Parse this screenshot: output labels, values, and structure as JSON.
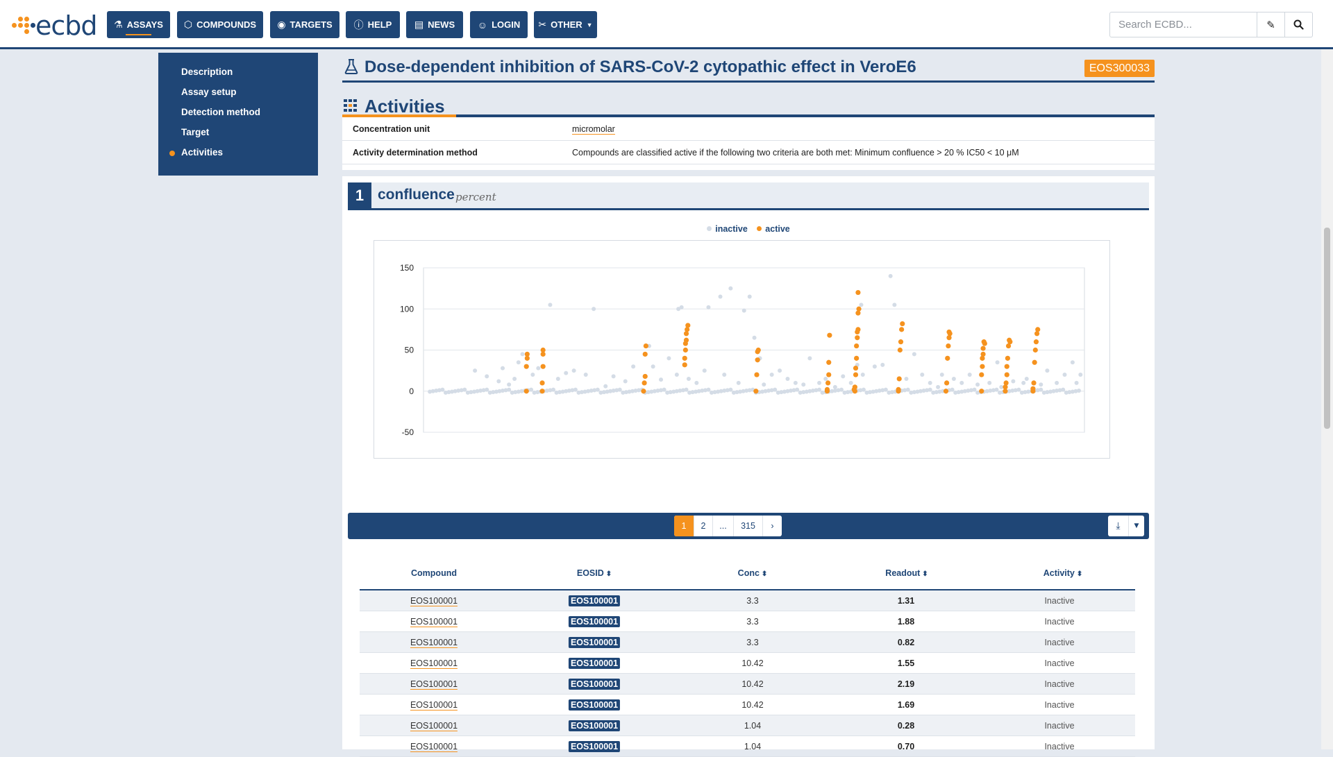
{
  "app": {
    "logo_text": "ecbd",
    "nav": [
      {
        "label": "ASSAYS",
        "icon": "flask-icon",
        "active": true
      },
      {
        "label": "COMPOUNDS",
        "icon": "hexagon-icon",
        "active": false
      },
      {
        "label": "TARGETS",
        "icon": "target-icon",
        "active": false
      },
      {
        "label": "HELP",
        "icon": "help-icon",
        "active": false
      },
      {
        "label": "NEWS",
        "icon": "news-icon",
        "active": false
      },
      {
        "label": "LOGIN",
        "icon": "user-icon",
        "active": false
      },
      {
        "label": "OTHER",
        "icon": "tools-icon",
        "active": false
      }
    ],
    "search": {
      "placeholder": "Search ECBD..."
    }
  },
  "sidebar": {
    "items": [
      {
        "label": "Description",
        "current": false
      },
      {
        "label": "Assay setup",
        "current": false
      },
      {
        "label": "Detection method",
        "current": false
      },
      {
        "label": "Target",
        "current": false
      },
      {
        "label": "Activities",
        "current": true
      }
    ]
  },
  "assay": {
    "title": "Dose-dependent inhibition of SARS-CoV-2 cytopathic effect in VeroE6",
    "id": "EOS300033"
  },
  "activities": {
    "title": "Activities",
    "info": [
      {
        "key": "Concentration unit",
        "value": "micromolar"
      },
      {
        "key": "Activity determination method",
        "value": "Compounds are classified active if the following two criteria are both met: Minimum confluence > 20 % IC50 < 10 μM"
      }
    ],
    "readout": {
      "number": "1",
      "name": "confluence",
      "unit": "percent"
    }
  },
  "chart_data": {
    "type": "scatter",
    "series": [
      {
        "name": "inactive",
        "color": "#d4dce6"
      },
      {
        "name": "active",
        "color": "#f5921e"
      }
    ],
    "yticks": [
      "150",
      "100",
      "50",
      "0",
      "-50"
    ],
    "ylim": [
      -50,
      150
    ],
    "grid": true,
    "legend_position": "top-center",
    "points_active": [
      [
        130,
        0
      ],
      [
        130,
        30
      ],
      [
        131,
        40
      ],
      [
        131,
        45
      ],
      [
        150,
        0
      ],
      [
        150,
        10
      ],
      [
        151,
        30
      ],
      [
        151,
        45
      ],
      [
        151,
        50
      ],
      [
        278,
        0
      ],
      [
        279,
        10
      ],
      [
        280,
        18
      ],
      [
        280,
        45
      ],
      [
        281,
        55
      ],
      [
        330,
        40
      ],
      [
        331,
        50
      ],
      [
        332,
        62
      ],
      [
        332,
        70
      ],
      [
        333,
        75
      ],
      [
        334,
        80
      ],
      [
        330,
        32
      ],
      [
        331,
        58
      ],
      [
        420,
        0
      ],
      [
        421,
        20
      ],
      [
        422,
        38
      ],
      [
        422,
        48
      ],
      [
        423,
        50
      ],
      [
        510,
        0
      ],
      [
        511,
        10
      ],
      [
        512,
        20
      ],
      [
        512,
        35
      ],
      [
        513,
        68
      ],
      [
        510,
        2
      ],
      [
        545,
        0
      ],
      [
        546,
        20
      ],
      [
        547,
        40
      ],
      [
        547,
        55
      ],
      [
        548,
        65
      ],
      [
        548,
        72
      ],
      [
        549,
        75
      ],
      [
        545,
        5
      ],
      [
        546,
        28
      ],
      [
        544,
        2
      ],
      [
        549,
        120
      ],
      [
        550,
        100
      ],
      [
        549,
        95
      ],
      [
        600,
        0
      ],
      [
        601,
        15
      ],
      [
        602,
        50
      ],
      [
        603,
        60
      ],
      [
        604,
        75
      ],
      [
        605,
        82
      ],
      [
        600,
        2
      ],
      [
        660,
        0
      ],
      [
        661,
        10
      ],
      [
        662,
        40
      ],
      [
        663,
        55
      ],
      [
        664,
        65
      ],
      [
        665,
        70
      ],
      [
        664,
        72
      ],
      [
        705,
        0
      ],
      [
        706,
        30
      ],
      [
        707,
        52
      ],
      [
        708,
        60
      ],
      [
        709,
        58
      ],
      [
        707,
        45
      ],
      [
        705,
        20
      ],
      [
        706,
        40
      ],
      [
        735,
        0
      ],
      [
        736,
        10
      ],
      [
        737,
        20
      ],
      [
        738,
        40
      ],
      [
        739,
        55
      ],
      [
        740,
        62
      ],
      [
        741,
        60
      ],
      [
        735,
        5
      ],
      [
        737,
        30
      ],
      [
        770,
        0
      ],
      [
        771,
        10
      ],
      [
        772,
        35
      ],
      [
        773,
        50
      ],
      [
        774,
        60
      ],
      [
        775,
        70
      ],
      [
        776,
        75
      ],
      [
        770,
        3
      ]
    ],
    "points_inactive": [
      [
        65,
        25
      ],
      [
        80,
        18
      ],
      [
        95,
        12
      ],
      [
        100,
        28
      ],
      [
        108,
        8
      ],
      [
        115,
        15
      ],
      [
        120,
        35
      ],
      [
        125,
        45
      ],
      [
        138,
        20
      ],
      [
        145,
        28
      ],
      [
        160,
        105
      ],
      [
        170,
        15
      ],
      [
        180,
        22
      ],
      [
        190,
        25
      ],
      [
        205,
        20
      ],
      [
        215,
        100
      ],
      [
        230,
        6
      ],
      [
        240,
        18
      ],
      [
        255,
        12
      ],
      [
        265,
        30
      ],
      [
        285,
        55
      ],
      [
        290,
        30
      ],
      [
        300,
        14
      ],
      [
        310,
        40
      ],
      [
        320,
        20
      ],
      [
        322,
        100
      ],
      [
        326,
        102
      ],
      [
        335,
        15
      ],
      [
        345,
        10
      ],
      [
        355,
        25
      ],
      [
        360,
        102
      ],
      [
        375,
        115
      ],
      [
        380,
        20
      ],
      [
        388,
        125
      ],
      [
        398,
        10
      ],
      [
        405,
        98
      ],
      [
        412,
        115
      ],
      [
        418,
        65
      ],
      [
        425,
        40
      ],
      [
        430,
        8
      ],
      [
        440,
        20
      ],
      [
        450,
        25
      ],
      [
        460,
        15
      ],
      [
        470,
        10
      ],
      [
        480,
        8
      ],
      [
        488,
        40
      ],
      [
        500,
        10
      ],
      [
        508,
        15
      ],
      [
        520,
        5
      ],
      [
        530,
        18
      ],
      [
        540,
        10
      ],
      [
        548,
        32
      ],
      [
        553,
        105
      ],
      [
        555,
        20
      ],
      [
        570,
        30
      ],
      [
        580,
        32
      ],
      [
        590,
        140
      ],
      [
        595,
        105
      ],
      [
        610,
        15
      ],
      [
        620,
        45
      ],
      [
        630,
        20
      ],
      [
        640,
        10
      ],
      [
        650,
        5
      ],
      [
        655,
        20
      ],
      [
        670,
        15
      ],
      [
        680,
        10
      ],
      [
        690,
        20
      ],
      [
        700,
        8
      ],
      [
        715,
        10
      ],
      [
        725,
        35
      ],
      [
        730,
        5
      ],
      [
        745,
        12
      ],
      [
        758,
        10
      ],
      [
        762,
        15
      ],
      [
        780,
        8
      ],
      [
        788,
        25
      ],
      [
        800,
        10
      ],
      [
        810,
        20
      ],
      [
        820,
        35
      ],
      [
        825,
        10
      ],
      [
        830,
        20
      ]
    ],
    "x_range": [
      0,
      835
    ]
  },
  "table": {
    "pager": {
      "pages": [
        "1",
        "2",
        "...",
        "315"
      ],
      "current": "1"
    },
    "columns": [
      "Compound",
      "EOSID",
      "Conc",
      "Readout",
      "Activity"
    ],
    "rows": [
      {
        "compound": "EOS100001",
        "eosid": "EOS100001",
        "conc": "3.3",
        "readout": "1.31",
        "activity": "Inactive"
      },
      {
        "compound": "EOS100001",
        "eosid": "EOS100001",
        "conc": "3.3",
        "readout": "1.88",
        "activity": "Inactive"
      },
      {
        "compound": "EOS100001",
        "eosid": "EOS100001",
        "conc": "3.3",
        "readout": "0.82",
        "activity": "Inactive"
      },
      {
        "compound": "EOS100001",
        "eosid": "EOS100001",
        "conc": "10.42",
        "readout": "1.55",
        "activity": "Inactive"
      },
      {
        "compound": "EOS100001",
        "eosid": "EOS100001",
        "conc": "10.42",
        "readout": "2.19",
        "activity": "Inactive"
      },
      {
        "compound": "EOS100001",
        "eosid": "EOS100001",
        "conc": "10.42",
        "readout": "1.69",
        "activity": "Inactive"
      },
      {
        "compound": "EOS100001",
        "eosid": "EOS100001",
        "conc": "1.04",
        "readout": "0.28",
        "activity": "Inactive"
      },
      {
        "compound": "EOS100001",
        "eosid": "EOS100001",
        "conc": "1.04",
        "readout": "0.70",
        "activity": "Inactive"
      }
    ]
  }
}
